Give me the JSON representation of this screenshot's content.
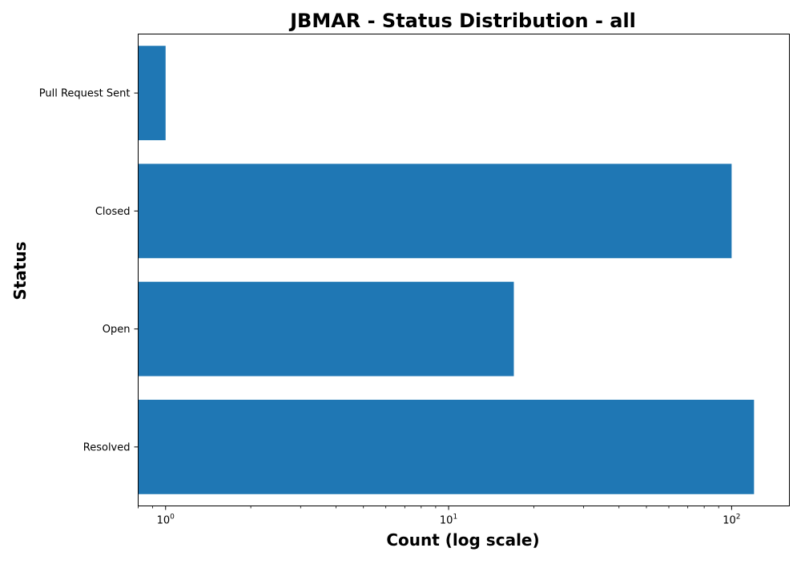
{
  "chart_data": {
    "type": "bar",
    "orientation": "horizontal",
    "title": "JBMAR - Status Distribution - all",
    "xlabel": "Count (log scale)",
    "ylabel": "Status",
    "x_scale": "log",
    "xlim": [
      0.8,
      160
    ],
    "x_major_ticks": [
      1,
      10,
      100
    ],
    "x_major_tick_labels": [
      {
        "base": "10",
        "exp": "0"
      },
      {
        "base": "10",
        "exp": "1"
      },
      {
        "base": "10",
        "exp": "2"
      }
    ],
    "categories": [
      "Pull Request Sent",
      "Closed",
      "Open",
      "Resolved"
    ],
    "values": [
      1,
      100,
      17,
      120
    ],
    "bar_color": "#1f77b4",
    "grid": false,
    "legend": "none"
  }
}
